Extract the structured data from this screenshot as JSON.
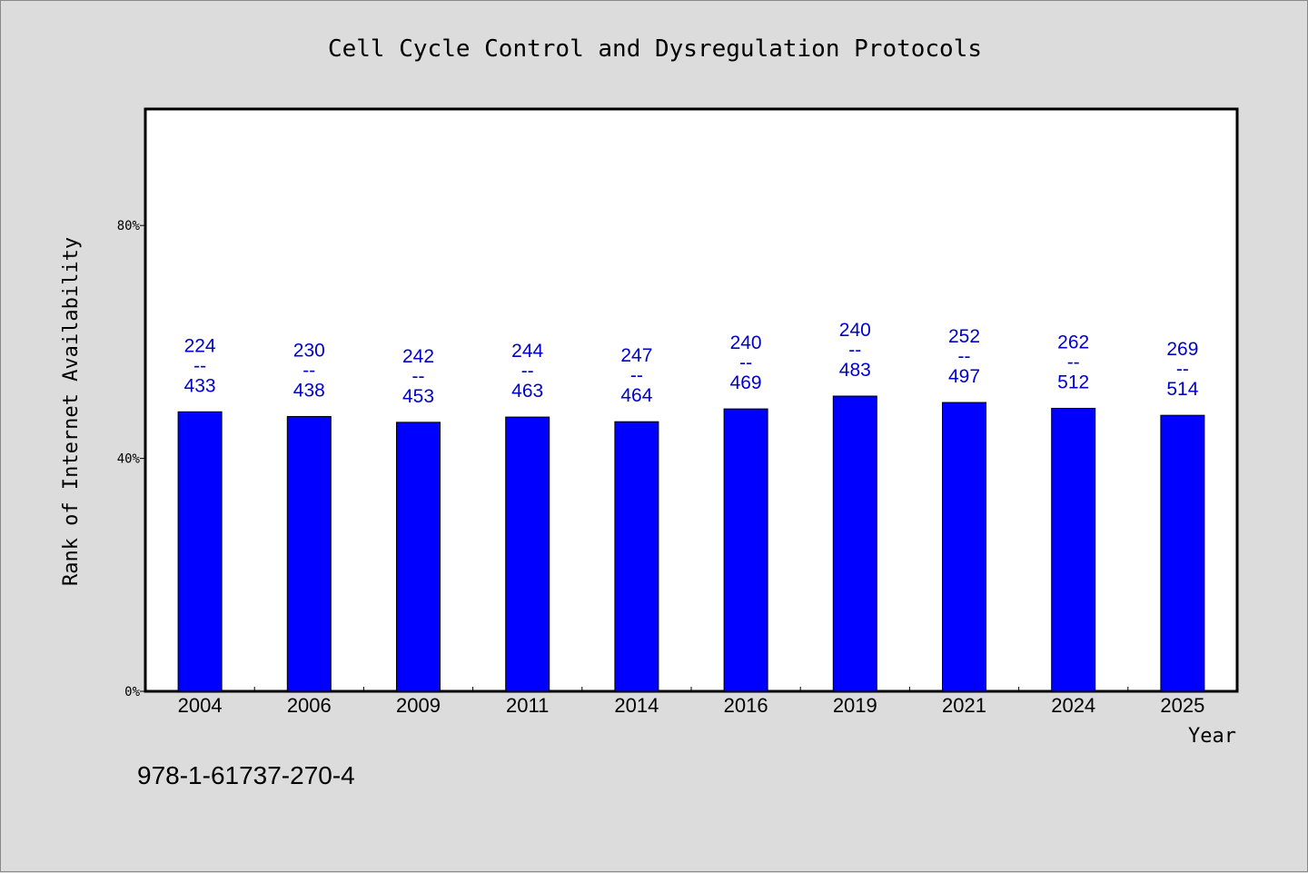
{
  "chart_data": {
    "type": "bar",
    "title": "Cell Cycle Control and Dysregulation Protocols",
    "xlabel": "Year",
    "ylabel": "Rank of Internet Availability",
    "categories": [
      "2004",
      "2006",
      "2009",
      "2011",
      "2014",
      "2016",
      "2019",
      "2021",
      "2024",
      "2025"
    ],
    "values": [
      48.0,
      47.2,
      46.2,
      47.1,
      46.3,
      48.5,
      50.7,
      49.6,
      48.6,
      47.4
    ],
    "value_unit": "%",
    "ylim": [
      0,
      100
    ],
    "yticks": [
      "0%",
      "40%",
      "80%"
    ],
    "ytick_values": [
      0,
      40,
      80
    ],
    "data_labels": [
      {
        "top": "224",
        "sep": "--",
        "bottom": "433"
      },
      {
        "top": "230",
        "sep": "--",
        "bottom": "438"
      },
      {
        "top": "242",
        "sep": "--",
        "bottom": "453"
      },
      {
        "top": "244",
        "sep": "--",
        "bottom": "463"
      },
      {
        "top": "247",
        "sep": "--",
        "bottom": "464"
      },
      {
        "top": "240",
        "sep": "--",
        "bottom": "469"
      },
      {
        "top": "240",
        "sep": "--",
        "bottom": "483"
      },
      {
        "top": "252",
        "sep": "--",
        "bottom": "497"
      },
      {
        "top": "262",
        "sep": "--",
        "bottom": "512"
      },
      {
        "top": "269",
        "sep": "--",
        "bottom": "514"
      }
    ],
    "grid": false,
    "legend": "none",
    "footnote": "978-1-61737-270-4",
    "colors": {
      "bar": "#0000ff",
      "label": "#0000cc",
      "plot_background": "#ffffff",
      "page_background": "#dcdcdc"
    }
  }
}
